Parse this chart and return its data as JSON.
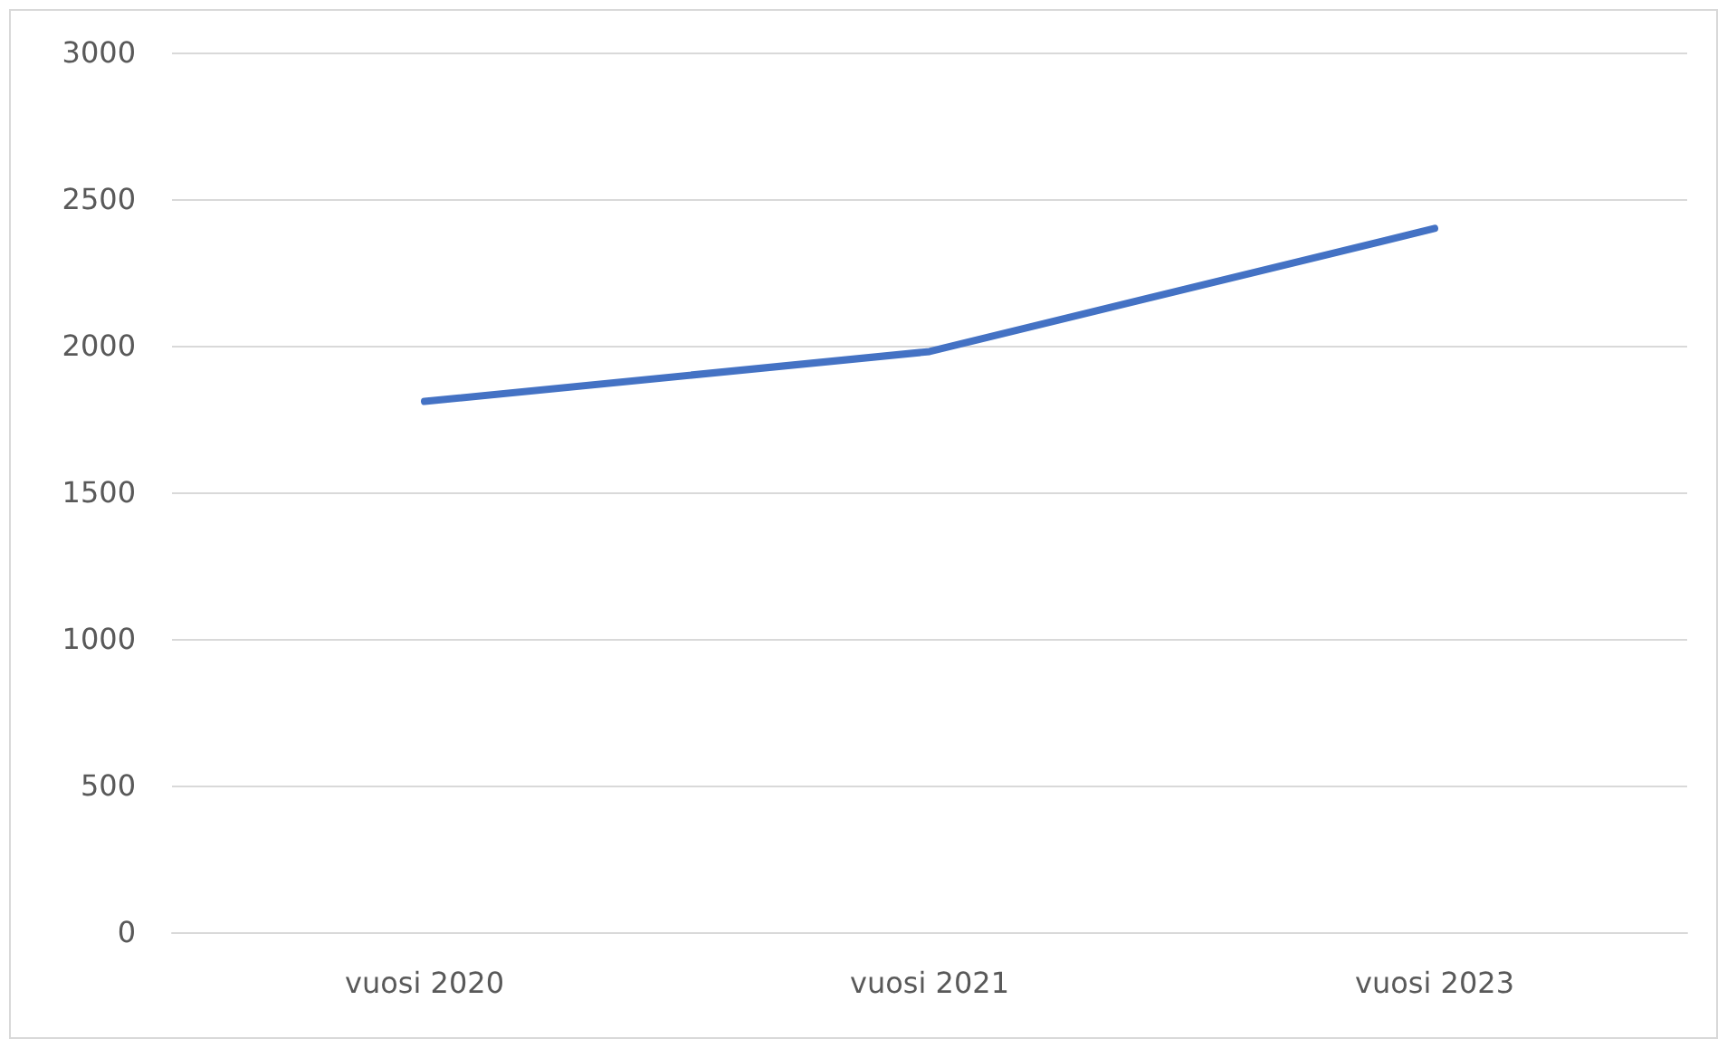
{
  "chart_data": {
    "type": "line",
    "categories": [
      "vuosi 2020",
      "vuosi 2021",
      "vuosi 2023"
    ],
    "series": [
      {
        "color": "#4472c4",
        "values": [
          1810,
          1980,
          2400
        ]
      }
    ],
    "ylim": [
      0,
      3000
    ],
    "yticks": [
      0,
      500,
      1000,
      1500,
      2000,
      2500,
      3000
    ],
    "grid": "y",
    "marker": "none",
    "line_style": "solid"
  }
}
